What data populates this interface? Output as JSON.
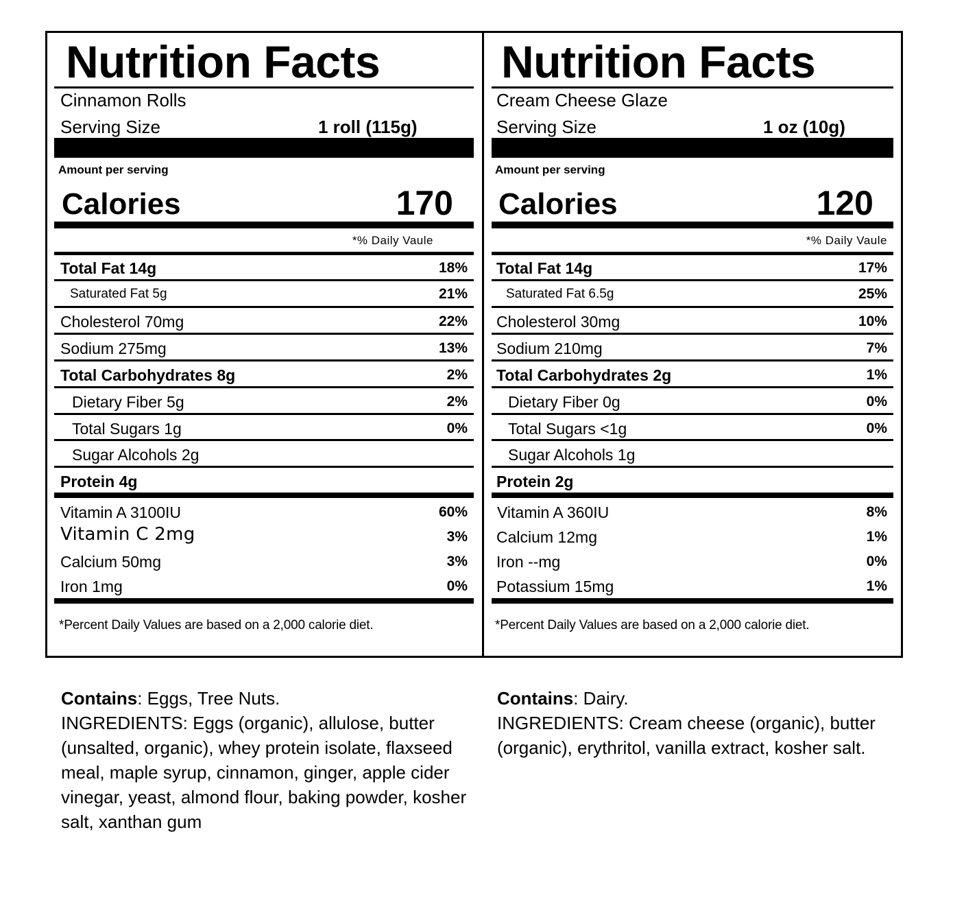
{
  "labels": [
    {
      "title": "Nutrition Facts",
      "product": "Cinnamon Rolls",
      "serving_label": "Serving Size",
      "serving_value": "1 roll (115g)",
      "amount_per_serving": "Amount per serving",
      "calories_label": "Calories",
      "calories_value": "170",
      "daily_value_header": "*% Daily Vaule",
      "nutrients": [
        {
          "label": "Total Fat 14g",
          "pct": "18%"
        },
        {
          "label": "Saturated Fat 5g",
          "pct": "21%"
        },
        {
          "label": "Cholesterol 70mg",
          "pct": "22%"
        },
        {
          "label": "Sodium 275mg",
          "pct": "13%"
        },
        {
          "label": "Total Carbohydrates 8g",
          "pct": "2%"
        },
        {
          "label": "Dietary Fiber 5g",
          "pct": "2%"
        },
        {
          "label": "Total Sugars 1g",
          "pct": "0%"
        },
        {
          "label": "Sugar Alcohols 2g",
          "pct": ""
        },
        {
          "label": "Protein 4g",
          "pct": ""
        }
      ],
      "vitamins": [
        {
          "label": "Vitamin A 3100IU",
          "pct": "60%"
        },
        {
          "label": "Vitamin C 2mg",
          "pct": "3%"
        },
        {
          "label": "Calcium 50mg",
          "pct": "3%"
        },
        {
          "label": "Iron 1mg",
          "pct": "0%"
        }
      ],
      "footnote": "*Percent Daily Values are based on a 2,000 calorie diet."
    },
    {
      "title": "Nutrition Facts",
      "product": "Cream Cheese Glaze",
      "serving_label": "Serving Size",
      "serving_value": "1 oz (10g)",
      "amount_per_serving": "Amount per serving",
      "calories_label": "Calories",
      "calories_value": "120",
      "daily_value_header": "*% Daily Vaule",
      "nutrients": [
        {
          "label": "Total Fat 14g",
          "pct": "17%"
        },
        {
          "label": "Saturated Fat 6.5g",
          "pct": "25%"
        },
        {
          "label": "Cholesterol 30mg",
          "pct": "10%"
        },
        {
          "label": "Sodium 210mg",
          "pct": "7%"
        },
        {
          "label": "Total Carbohydrates 2g",
          "pct": "1%"
        },
        {
          "label": "Dietary Fiber 0g",
          "pct": "0%"
        },
        {
          "label": "Total Sugars <1g",
          "pct": "0%"
        },
        {
          "label": "Sugar Alcohols 1g",
          "pct": ""
        },
        {
          "label": "Protein 2g",
          "pct": ""
        }
      ],
      "vitamins": [
        {
          "label": "Vitamin A 360IU",
          "pct": "8%"
        },
        {
          "label": "Calcium 12mg",
          "pct": "1%"
        },
        {
          "label": "Iron --mg",
          "pct": "0%"
        },
        {
          "label": "Potassium 15mg",
          "pct": "1%"
        }
      ],
      "footnote": "*Percent Daily Values are based on a 2,000 calorie diet."
    }
  ],
  "allergens": [
    {
      "contains_label": "Contains",
      "contains_value": ": Eggs, Tree Nuts.",
      "ingredients": "INGREDIENTS:  Eggs (organic), allulose, butter (unsalted, organic), whey protein isolate, flaxseed meal, maple syrup, cinnamon, ginger, apple cider vinegar, yeast, almond flour, baking powder, kosher salt, xanthan gum"
    },
    {
      "contains_label": "Contains",
      "contains_value": ": Dairy.",
      "ingredients": "INGREDIENTS: Cream cheese (organic), butter (organic), erythritol, vanilla extract, kosher salt."
    }
  ]
}
